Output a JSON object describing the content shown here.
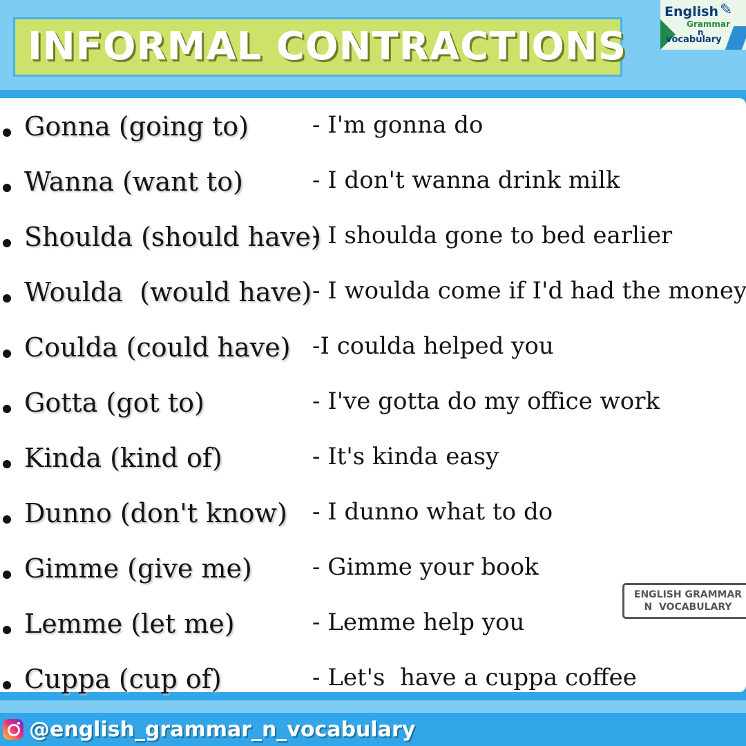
{
  "header": {
    "title": "INFORMAL CONTRACTIONS",
    "logo": {
      "line1": "English",
      "line2": "Grammar",
      "line3": "n",
      "line4": "vocabulary",
      "icon": "pen-book-icon"
    }
  },
  "items": [
    {
      "term": "Gonna (going to)",
      "example": "- I'm gonna do"
    },
    {
      "term": "Wanna (want to)",
      "example": "- I don't wanna drink milk"
    },
    {
      "term": "Shoulda (should have)",
      "example": "- I shoulda gone to bed earlier"
    },
    {
      "term": "Woulda  (would have)",
      "example": "- I woulda come if I'd had the money"
    },
    {
      "term": "Coulda (could have)",
      "example": "-I coulda helped you"
    },
    {
      "term": "Gotta (got to)",
      "example": "- I've gotta do my office work"
    },
    {
      "term": "Kinda (kind of)",
      "example": "- It's kinda easy"
    },
    {
      "term": "Dunno (don't know)",
      "example": "- I dunno what to do"
    },
    {
      "term": "Gimme (give me)",
      "example": "- Gimme your book"
    },
    {
      "term": "Lemme (let me)",
      "example": "- Lemme help you"
    },
    {
      "term": "Cuppa (cup of)",
      "example": "- Let's  have a cuppa coffee"
    }
  ],
  "stamp": {
    "line1": "ENGLISH GRAMMAR",
    "line2": "N  VOCABULARY"
  },
  "footer": {
    "icon": "instagram-icon",
    "handle": "@english_grammar_n_vocabulary"
  },
  "colors": {
    "background": "#7ecbf3",
    "band": "#32a6e8",
    "title_box": "#cde26a",
    "title_text": "#ffffff"
  }
}
